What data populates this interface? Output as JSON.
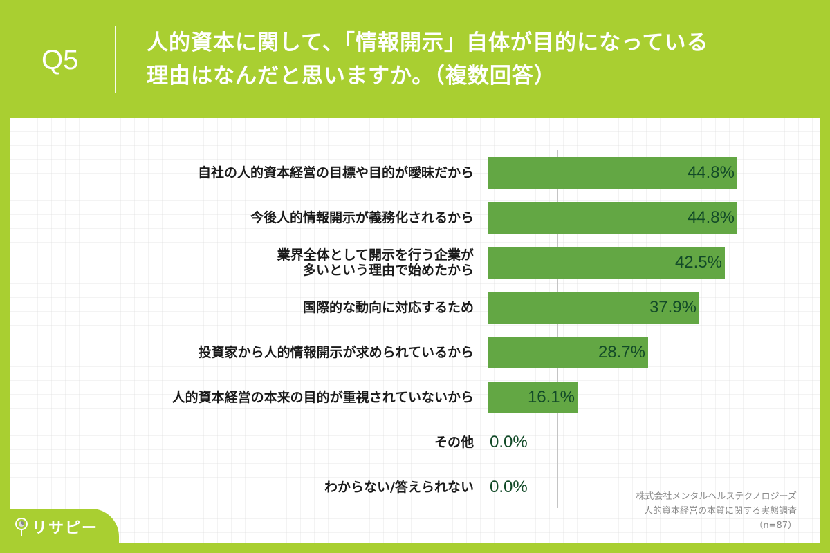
{
  "header": {
    "question_number": "Q5",
    "title_line1": "人的資本に関して、「情報開示」自体が目的になっている",
    "title_line2": "理由はなんだと思いますか。（複数回答）"
  },
  "colors": {
    "background": "#a9cf31",
    "bar": "#63a744",
    "value_text": "#124a28",
    "panel": "#ffffff"
  },
  "chart_data": {
    "type": "bar",
    "orientation": "horizontal",
    "title": "人的資本に関して、「情報開示」自体が目的になっている理由はなんだと思いますか。（複数回答）",
    "xlabel": "",
    "ylabel": "",
    "xlim": [
      0,
      50
    ],
    "grid": true,
    "gridline_step": 12.5,
    "legend": null,
    "categories": [
      "自社の人的資本経営の目標や目的が曖昧だから",
      "今後人的情報開示が義務化されるから",
      "業界全体として開示を行う企業が\n多いという理由で始めたから",
      "国際的な動向に対応するため",
      "投資家から人的情報開示が求められているから",
      "人的資本経営の本来の目的が重視されていないから",
      "その他",
      "わからない/答えられない"
    ],
    "values": [
      44.8,
      44.8,
      42.5,
      37.9,
      28.7,
      16.1,
      0.0,
      0.0
    ],
    "value_labels": [
      "44.8%",
      "44.8%",
      "42.5%",
      "37.9%",
      "28.7%",
      "16.1%",
      "0.0%",
      "0.0%"
    ],
    "unit": "%",
    "n": 87
  },
  "source": {
    "line1": "株式会社メンタルヘルステクノロジーズ",
    "line2": "人的資本経営の本質に関する実態調査",
    "line3": "（n=87）"
  },
  "logo": {
    "text": "リサピー",
    "icon": "magnifier-pie-icon"
  }
}
